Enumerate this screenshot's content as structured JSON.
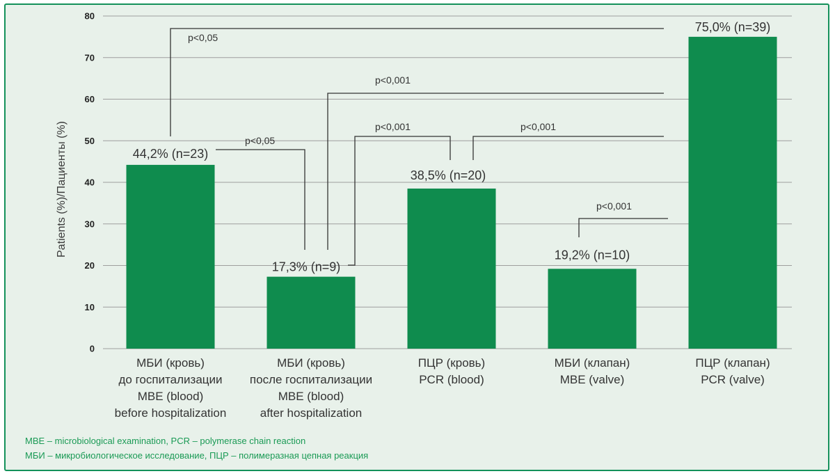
{
  "chart_data": {
    "type": "bar",
    "ylabel": "Patients (%)/Пациенты (%)",
    "ylim": [
      0,
      80
    ],
    "yticks": [
      0,
      10,
      20,
      30,
      40,
      50,
      60,
      70,
      80
    ],
    "grid": true,
    "bar_color": "#0f8c4e",
    "categories": [
      [
        "МБИ (кровь)",
        "до госпитализации",
        "MBE (blood)",
        "before hospitalization"
      ],
      [
        "МБИ (кровь)",
        "после госпитализации",
        "MBE (blood)",
        "after hospitalization"
      ],
      [
        "ПЦР (кровь)",
        "PCR (blood)"
      ],
      [
        "МБИ (клапан)",
        "MBE (valve)"
      ],
      [
        "ПЦР (клапан)",
        "PCR (valve)"
      ]
    ],
    "values": [
      44.2,
      17.3,
      38.5,
      19.2,
      75.0
    ],
    "data_labels": [
      "44,2% (n=23)",
      "17,3% (n=9)",
      "38,5% (n=20)",
      "19,2% (n=10)",
      "75,0% (n=39)"
    ],
    "significance": [
      {
        "from": 0,
        "to": 4,
        "label": "p<0,05"
      },
      {
        "from": 1,
        "to": 4,
        "label": "p<0,001"
      },
      {
        "from": 0,
        "to": 1,
        "label": "p<0,05"
      },
      {
        "from": 1,
        "to": 2,
        "label": "p<0,001"
      },
      {
        "from": 2,
        "to": 4,
        "label": "p<0,001"
      },
      {
        "from": 3,
        "to": 4,
        "label": "p<0,001"
      }
    ]
  },
  "footnotes": {
    "en": "MBE – microbiological examination, PCR – polymerase chain reaction",
    "ru": "МБИ – микробиологическое исследование, ПЦР – полимеразная цепная реакция"
  }
}
